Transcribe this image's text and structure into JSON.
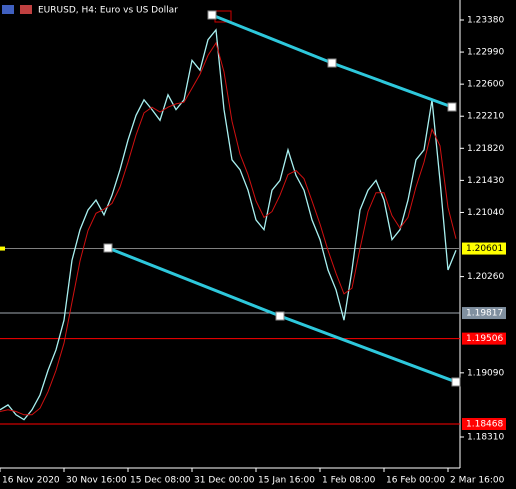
{
  "chart_data": {
    "type": "line",
    "title": "EURUSD, H4:  Euro vs US Dollar",
    "x": [
      0,
      2,
      4,
      6,
      8,
      10,
      12,
      14,
      16,
      18,
      20,
      22,
      24,
      26,
      28,
      30,
      32,
      34,
      36,
      38,
      40,
      42,
      44,
      46,
      48,
      50,
      52,
      54,
      56,
      58,
      60,
      62,
      64,
      66,
      68,
      70,
      72,
      74,
      76,
      78,
      80,
      82,
      84,
      86,
      88,
      90,
      92,
      94,
      96,
      98,
      100,
      102,
      104,
      106,
      108,
      110,
      112,
      114
    ],
    "series": [
      {
        "color": "#a8f0f0",
        "values": [
          1.1864,
          1.187,
          1.1858,
          1.1852,
          1.1864,
          1.1882,
          1.1912,
          1.1937,
          1.1973,
          1.2046,
          1.2083,
          1.2107,
          1.2119,
          1.2101,
          1.2125,
          1.2156,
          1.2192,
          1.2222,
          1.2241,
          1.2229,
          1.2216,
          1.2247,
          1.2229,
          1.2241,
          1.2289,
          1.2277,
          1.2314,
          1.2326,
          1.2229,
          1.2168,
          1.2156,
          1.2131,
          1.2095,
          1.2083,
          1.2131,
          1.2143,
          1.218,
          1.2149,
          1.2131,
          1.2095,
          1.2071,
          1.2034,
          1.201,
          1.1973,
          1.2034,
          1.2107,
          1.2131,
          1.2143,
          1.2119,
          1.2071,
          1.2083,
          1.2119,
          1.2168,
          1.218,
          1.2241,
          1.2143,
          1.2034,
          1.2058
        ]
      },
      {
        "color": "#d01010",
        "values": [
          1.1862,
          1.1864,
          1.1862,
          1.1858,
          1.1858,
          1.1866,
          1.1886,
          1.1912,
          1.1945,
          1.1995,
          1.2045,
          1.2082,
          1.2103,
          1.2108,
          1.2115,
          1.2135,
          1.2165,
          1.2198,
          1.2225,
          1.2232,
          1.2226,
          1.2232,
          1.2236,
          1.2238,
          1.2255,
          1.2272,
          1.2295,
          1.231,
          1.2275,
          1.2215,
          1.2175,
          1.215,
          1.2118,
          1.2098,
          1.2105,
          1.2125,
          1.215,
          1.2155,
          1.2145,
          1.2118,
          1.209,
          1.2058,
          1.203,
          1.2005,
          1.2012,
          1.206,
          1.2105,
          1.2128,
          1.2128,
          1.21,
          1.2085,
          1.2098,
          1.2135,
          1.2165,
          1.2205,
          1.2185,
          1.211,
          1.2072
        ]
      }
    ],
    "trendlines": [
      {
        "color": "#2ec8dc",
        "x": [
          53,
          83,
          113
        ],
        "values": [
          1.23441,
          1.22857,
          1.22322
        ]
      },
      {
        "color": "#2ec8dc",
        "x": [
          27,
          70,
          114
        ],
        "values": [
          1.20608,
          1.19781,
          1.18979
        ]
      }
    ],
    "levels": [
      {
        "value": 1.20601,
        "color": "#ffff00",
        "line": "#808080"
      },
      {
        "value": 1.19817,
        "color": "#8090a0",
        "line": "#a0a8b0"
      },
      {
        "value": 1.19506,
        "color": "#ff0000",
        "line": "#ff0000"
      },
      {
        "value": 1.18468,
        "color": "#ff0000",
        "line": "#ff0000"
      }
    ],
    "xlim": [
      0,
      115
    ],
    "xticks": [
      {
        "value": 0,
        "label": "16 Nov 2020"
      },
      {
        "value": 16,
        "label": "30 Nov 16:00"
      },
      {
        "value": 32,
        "label": "15 Dec 08:00"
      },
      {
        "value": 48,
        "label": "31 Dec 00:00"
      },
      {
        "value": 64,
        "label": "15 Jan 16:00"
      },
      {
        "value": 80,
        "label": "1 Feb 08:00"
      },
      {
        "value": 96,
        "label": "16 Feb 00:00"
      },
      {
        "value": 112,
        "label": "2 Mar 16:00"
      }
    ],
    "ylim": [
      1.17933,
      1.23623
    ],
    "yticks": [
      {
        "value": 1.2338,
        "label": "1.23380"
      },
      {
        "value": 1.2299,
        "label": "1.22990"
      },
      {
        "value": 1.226,
        "label": "1.22600"
      },
      {
        "value": 1.2221,
        "label": "1.22210"
      },
      {
        "value": 1.2182,
        "label": "1.21820"
      },
      {
        "value": 1.2143,
        "label": "1.21430"
      },
      {
        "value": 1.2104,
        "label": "1.21040"
      },
      {
        "value": 1.2026,
        "label": "1.20260"
      },
      {
        "value": 1.1909,
        "label": "1.19090"
      },
      {
        "value": 1.1831,
        "label": "1.18310"
      }
    ]
  }
}
